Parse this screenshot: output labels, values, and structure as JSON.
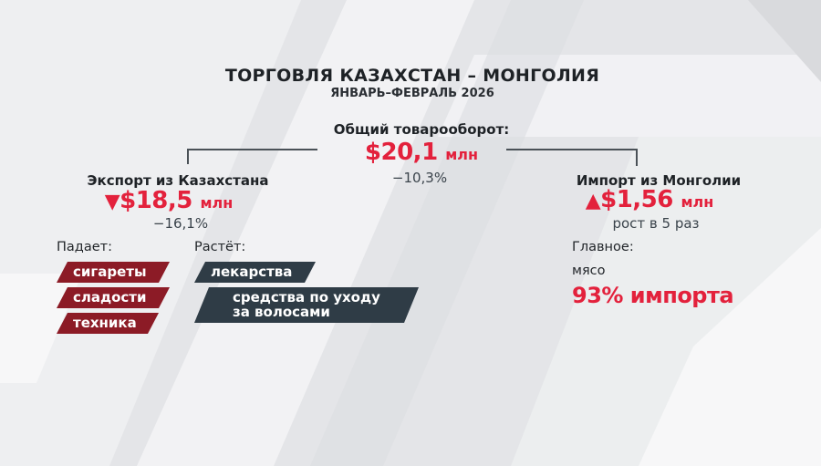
{
  "header": {
    "title": "ТОРГОВЛЯ КАЗАХСТАН – МОНГОЛИЯ",
    "period": "ЯНВАРЬ–ФЕВРАЛЬ 2026"
  },
  "total": {
    "label": "Общий товарооборот:",
    "value": "$20,1",
    "unit": "млн",
    "change": "−10,3%"
  },
  "export": {
    "label": "Экспорт из Казахстана",
    "trend_icon": "down-triangle",
    "value": "$18,5",
    "unit": "млн",
    "change": "−16,1%",
    "falling_label": "Падает:",
    "falling": [
      "сигареты",
      "сладости",
      "техника"
    ],
    "rising_label": "Растёт:",
    "rising": [
      "лекарства",
      "средства по уходу",
      "за волосами"
    ]
  },
  "import": {
    "label": "Импорт из Монголии",
    "trend_icon": "up-triangle",
    "value": "$1,56",
    "unit": "млн",
    "change": "рост в 5 раз",
    "main_label": "Главное:",
    "main_item": "мясо",
    "main_share": "93% импорта"
  },
  "colors": {
    "accent": "#e3213c",
    "tag_falling": "#8c1b26",
    "tag_rising": "#2f3c46"
  }
}
